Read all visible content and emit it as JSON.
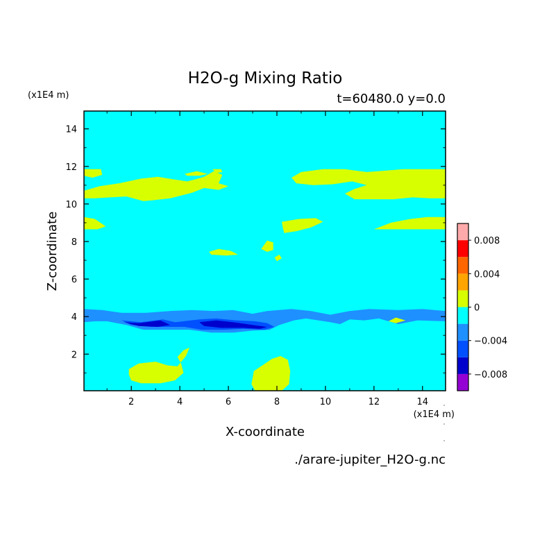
{
  "chart_data": {
    "type": "heatmap",
    "title": "H2O-g Mixing Ratio",
    "subtitle": "t=60480.0 y=0.0",
    "source_file": "./arare-jupiter_H2O-g.nc",
    "xlabel": "X-coordinate",
    "ylabel": "Z-coordinate",
    "x_unit": "(x1E4 m)",
    "y_unit": "(x1E4 m)",
    "xlim": [
      0.05,
      14.95
    ],
    "ylim": [
      0.05,
      14.95
    ],
    "xticks": [
      2,
      4,
      6,
      8,
      10,
      12,
      14
    ],
    "yticks": [
      2,
      4,
      6,
      8,
      10,
      12,
      14
    ],
    "background_level": "0 to -0.002",
    "colorbar": {
      "levels": [
        {
          "from": -0.01,
          "to": -0.008,
          "color": "#9400d3"
        },
        {
          "from": -0.008,
          "to": -0.006,
          "color": "#0000cd"
        },
        {
          "from": -0.006,
          "to": -0.004,
          "color": "#0050ff"
        },
        {
          "from": -0.004,
          "to": -0.002,
          "color": "#1e90ff"
        },
        {
          "from": -0.002,
          "to": 0.0,
          "color": "#00ffff"
        },
        {
          "from": 0.0,
          "to": 0.002,
          "color": "#d7ff00"
        },
        {
          "from": 0.002,
          "to": 0.004,
          "color": "#ffa500"
        },
        {
          "from": 0.004,
          "to": 0.006,
          "color": "#ff6600"
        },
        {
          "from": 0.006,
          "to": 0.008,
          "color": "#ff0000"
        },
        {
          "from": 0.008,
          "to": 0.01,
          "color": "#ffaaaa"
        }
      ],
      "tick_values": [
        0.008,
        0.004,
        0,
        -0.004,
        -0.008
      ],
      "tick_labels": [
        "0.008",
        "0.004",
        "0",
        "−0.004",
        "−0.008"
      ]
    },
    "regions": [
      {
        "level": "0 to 0.002",
        "color": "#d7ff00",
        "points": [
          [
            0.05,
            11.85
          ],
          [
            0.75,
            11.85
          ],
          [
            0.8,
            11.55
          ],
          [
            0.4,
            11.4
          ],
          [
            0.05,
            11.5
          ]
        ]
      },
      {
        "level": "0 to 0.002",
        "color": "#d7ff00",
        "points": [
          [
            0.05,
            10.7
          ],
          [
            0.7,
            10.95
          ],
          [
            1.5,
            11.1
          ],
          [
            2.4,
            11.35
          ],
          [
            3.1,
            11.45
          ],
          [
            3.8,
            11.3
          ],
          [
            4.3,
            11.2
          ],
          [
            4.6,
            11.3
          ],
          [
            5.0,
            11.45
          ],
          [
            5.4,
            11.75
          ],
          [
            5.75,
            11.55
          ],
          [
            5.6,
            11.1
          ],
          [
            6.0,
            10.95
          ],
          [
            5.6,
            10.75
          ],
          [
            5.0,
            10.85
          ],
          [
            4.5,
            10.6
          ],
          [
            3.6,
            10.3
          ],
          [
            2.9,
            10.2
          ],
          [
            2.5,
            10.15
          ],
          [
            1.8,
            10.4
          ],
          [
            1.1,
            10.35
          ],
          [
            0.5,
            10.3
          ],
          [
            0.05,
            10.3
          ]
        ]
      },
      {
        "level": "0 to 0.002",
        "color": "#d7ff00",
        "points": [
          [
            4.2,
            11.6
          ],
          [
            4.7,
            11.75
          ],
          [
            5.15,
            11.6
          ],
          [
            4.8,
            11.5
          ],
          [
            4.3,
            11.5
          ]
        ]
      },
      {
        "level": "0 to 0.002",
        "color": "#d7ff00",
        "points": [
          [
            5.35,
            11.85
          ],
          [
            5.7,
            11.85
          ],
          [
            5.75,
            11.7
          ],
          [
            5.5,
            11.65
          ]
        ]
      },
      {
        "level": "0 to 0.002",
        "color": "#d7ff00",
        "points": [
          [
            8.6,
            11.4
          ],
          [
            9.0,
            11.7
          ],
          [
            9.9,
            11.85
          ],
          [
            10.8,
            11.85
          ],
          [
            11.7,
            11.7
          ],
          [
            12.2,
            11.75
          ],
          [
            13.2,
            11.85
          ],
          [
            14.95,
            11.85
          ],
          [
            14.95,
            10.3
          ],
          [
            14.3,
            10.3
          ],
          [
            13.6,
            10.35
          ],
          [
            12.8,
            10.25
          ],
          [
            11.2,
            10.25
          ],
          [
            10.8,
            10.55
          ],
          [
            11.2,
            10.8
          ],
          [
            11.7,
            11.0
          ],
          [
            11.1,
            11.2
          ],
          [
            10.3,
            11.05
          ],
          [
            9.5,
            11.0
          ],
          [
            8.8,
            11.1
          ]
        ]
      },
      {
        "level": "0 to 0.002",
        "color": "#d7ff00",
        "points": [
          [
            0.05,
            9.3
          ],
          [
            0.5,
            9.2
          ],
          [
            0.95,
            8.8
          ],
          [
            0.6,
            8.65
          ],
          [
            0.05,
            8.65
          ]
        ]
      },
      {
        "level": "0 to 0.002",
        "color": "#d7ff00",
        "points": [
          [
            12.0,
            8.65
          ],
          [
            12.7,
            9.0
          ],
          [
            13.5,
            9.2
          ],
          [
            14.2,
            9.3
          ],
          [
            14.95,
            9.3
          ],
          [
            14.95,
            8.65
          ]
        ]
      },
      {
        "level": "0 to 0.002",
        "color": "#d7ff00",
        "points": [
          [
            8.2,
            9.05
          ],
          [
            8.9,
            9.2
          ],
          [
            9.6,
            9.25
          ],
          [
            9.9,
            9.05
          ],
          [
            9.4,
            8.75
          ],
          [
            8.8,
            8.55
          ],
          [
            8.3,
            8.45
          ],
          [
            8.25,
            8.7
          ]
        ]
      },
      {
        "level": "0 to 0.002",
        "color": "#d7ff00",
        "points": [
          [
            5.2,
            7.45
          ],
          [
            5.6,
            7.6
          ],
          [
            6.1,
            7.5
          ],
          [
            6.4,
            7.3
          ],
          [
            5.9,
            7.25
          ],
          [
            5.3,
            7.3
          ]
        ]
      },
      {
        "level": "0 to 0.002",
        "color": "#d7ff00",
        "points": [
          [
            7.35,
            7.6
          ],
          [
            7.6,
            8.05
          ],
          [
            7.85,
            7.95
          ],
          [
            7.85,
            7.55
          ],
          [
            7.6,
            7.45
          ]
        ]
      },
      {
        "level": "0 to 0.002",
        "color": "#d7ff00",
        "points": [
          [
            7.9,
            7.15
          ],
          [
            8.1,
            7.3
          ],
          [
            8.2,
            7.1
          ],
          [
            8.0,
            6.95
          ]
        ]
      },
      {
        "level": "-0.004 to -0.002",
        "color": "#1e90ff",
        "points": [
          [
            0.05,
            4.4
          ],
          [
            0.8,
            4.35
          ],
          [
            1.6,
            4.2
          ],
          [
            2.6,
            4.2
          ],
          [
            3.6,
            4.3
          ],
          [
            4.5,
            4.35
          ],
          [
            5.4,
            4.3
          ],
          [
            6.2,
            4.35
          ],
          [
            7.0,
            4.15
          ],
          [
            7.6,
            4.3
          ],
          [
            8.6,
            4.4
          ],
          [
            9.4,
            4.3
          ],
          [
            10.2,
            4.1
          ],
          [
            11.0,
            4.3
          ],
          [
            11.8,
            4.4
          ],
          [
            13.0,
            4.35
          ],
          [
            14.0,
            4.4
          ],
          [
            14.95,
            4.3
          ],
          [
            14.95,
            3.75
          ],
          [
            13.8,
            3.8
          ],
          [
            13.0,
            3.6
          ],
          [
            12.6,
            3.75
          ],
          [
            12.2,
            3.9
          ],
          [
            11.6,
            3.8
          ],
          [
            11.0,
            3.85
          ],
          [
            10.6,
            3.6
          ],
          [
            10.2,
            3.7
          ],
          [
            9.2,
            3.9
          ],
          [
            8.7,
            3.8
          ],
          [
            8.1,
            3.55
          ],
          [
            7.7,
            3.3
          ],
          [
            7.0,
            3.25
          ],
          [
            6.2,
            3.15
          ],
          [
            5.3,
            3.15
          ],
          [
            4.4,
            3.3
          ],
          [
            3.5,
            3.3
          ],
          [
            2.5,
            3.3
          ],
          [
            1.8,
            3.55
          ],
          [
            1.0,
            3.75
          ],
          [
            0.5,
            3.75
          ],
          [
            0.05,
            3.7
          ]
        ]
      },
      {
        "level": "0 to 0.002",
        "color": "#d7ff00",
        "points": [
          [
            12.6,
            3.75
          ],
          [
            12.9,
            3.95
          ],
          [
            13.3,
            3.8
          ],
          [
            12.9,
            3.65
          ]
        ]
      },
      {
        "level": "-0.006 to -0.004",
        "color": "#0050ff",
        "points": [
          [
            1.6,
            3.8
          ],
          [
            2.4,
            3.7
          ],
          [
            3.3,
            3.85
          ],
          [
            3.8,
            3.7
          ],
          [
            4.8,
            3.85
          ],
          [
            5.5,
            3.9
          ],
          [
            6.3,
            3.8
          ],
          [
            7.1,
            3.75
          ],
          [
            7.6,
            3.65
          ],
          [
            7.9,
            3.45
          ],
          [
            7.5,
            3.3
          ],
          [
            6.6,
            3.35
          ],
          [
            5.8,
            3.3
          ],
          [
            4.9,
            3.3
          ],
          [
            4.2,
            3.45
          ],
          [
            3.6,
            3.45
          ],
          [
            2.8,
            3.45
          ],
          [
            2.0,
            3.55
          ]
        ]
      },
      {
        "level": "-0.008 to -0.006",
        "color": "#0000cd",
        "points": [
          [
            1.7,
            3.7
          ],
          [
            2.3,
            3.65
          ],
          [
            3.2,
            3.8
          ],
          [
            3.6,
            3.55
          ],
          [
            3.1,
            3.45
          ],
          [
            2.3,
            3.5
          ]
        ]
      },
      {
        "level": "-0.008 to -0.006",
        "color": "#0000cd",
        "points": [
          [
            4.8,
            3.7
          ],
          [
            5.5,
            3.8
          ],
          [
            6.2,
            3.7
          ],
          [
            7.0,
            3.55
          ],
          [
            7.6,
            3.45
          ],
          [
            7.3,
            3.35
          ],
          [
            6.6,
            3.4
          ],
          [
            5.7,
            3.4
          ],
          [
            5.0,
            3.5
          ]
        ]
      },
      {
        "level": "0 to 0.002",
        "color": "#d7ff00",
        "points": [
          [
            1.9,
            1.2
          ],
          [
            2.3,
            1.5
          ],
          [
            3.0,
            1.6
          ],
          [
            3.5,
            1.4
          ],
          [
            3.9,
            1.35
          ],
          [
            4.25,
            1.9
          ],
          [
            4.4,
            2.35
          ],
          [
            4.15,
            2.2
          ],
          [
            3.9,
            1.85
          ],
          [
            4.05,
            1.5
          ],
          [
            4.15,
            1.0
          ],
          [
            3.8,
            0.6
          ],
          [
            3.2,
            0.45
          ],
          [
            2.4,
            0.45
          ],
          [
            2.0,
            0.6
          ],
          [
            1.9,
            0.9
          ]
        ]
      },
      {
        "level": "0 to 0.002",
        "color": "#d7ff00",
        "points": [
          [
            7.05,
            1.1
          ],
          [
            7.4,
            1.4
          ],
          [
            7.8,
            1.75
          ],
          [
            8.15,
            1.9
          ],
          [
            8.45,
            1.7
          ],
          [
            8.55,
            1.1
          ],
          [
            8.5,
            0.4
          ],
          [
            8.2,
            0.05
          ],
          [
            7.1,
            0.05
          ],
          [
            6.95,
            0.4
          ]
        ]
      }
    ]
  }
}
